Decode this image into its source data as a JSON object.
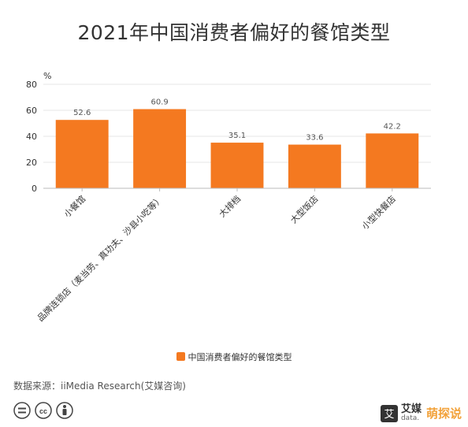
{
  "title": "2021年中国消费者偏好的餐馆类型",
  "chart_data": {
    "type": "bar",
    "title": "2021年中国消费者偏好的餐馆类型",
    "ylabel": "%",
    "ylim": [
      0,
      80
    ],
    "yticks": [
      0,
      20,
      40,
      60,
      80
    ],
    "grid": true,
    "legend_position": "bottom",
    "categories": [
      "小餐馆",
      "品牌连锁店（麦当劳、真功夫、沙县小吃等）",
      "大排档",
      "大型饭店",
      "小型快餐店"
    ],
    "series": [
      {
        "name": "中国消费者偏好的餐馆类型",
        "values": [
          52.6,
          60.9,
          35.1,
          33.6,
          42.2
        ],
        "color": "#F47920"
      }
    ]
  },
  "source": "数据来源：iiMedia Research(艾媒咨询)",
  "brand": {
    "logo_char": "艾",
    "name": "艾媒",
    "url": "data.",
    "watermark": "萌探说"
  },
  "icons": [
    "cc-equal-icon",
    "cc-icon",
    "cc-person-icon"
  ]
}
